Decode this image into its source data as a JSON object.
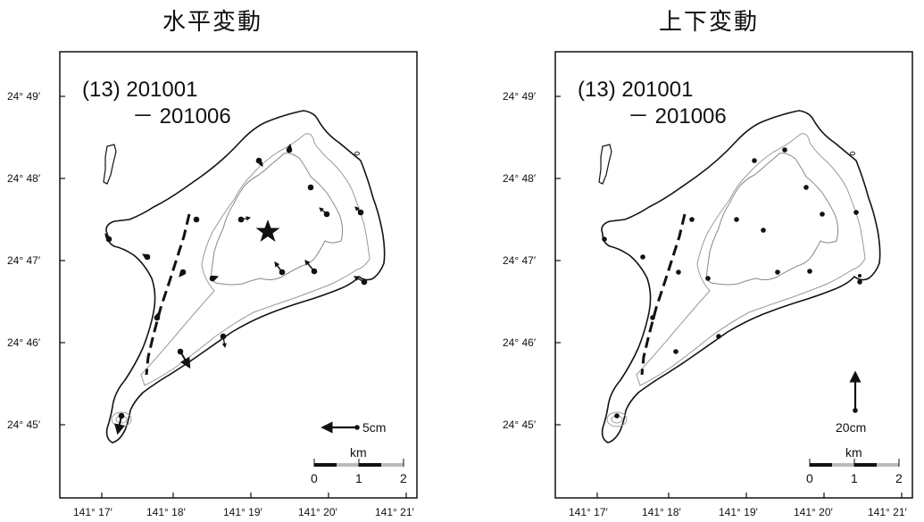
{
  "panels": [
    {
      "id": "horizontal",
      "title": "水平変動",
      "period_line1": "(13) 201001",
      "period_line2": "－ 201006",
      "scale_arrow_label": "5cm",
      "scale_bar_unit": "km",
      "scale_bar_ticks": [
        "0",
        "1",
        "2"
      ],
      "lat_labels": [
        "24°  49′",
        "24°  48′",
        "24°  47′",
        "24°  46′",
        "24°  45′"
      ],
      "lon_labels": [
        "141°  17′",
        "141°  18′",
        "141°  19′",
        "141°  20′",
        "141°  21′"
      ],
      "has_star": true
    },
    {
      "id": "vertical",
      "title": "上下変動",
      "period_line1": "(13) 201001",
      "period_line2": "－ 201006",
      "scale_arrow_label": "20cm",
      "scale_bar_unit": "km",
      "scale_bar_ticks": [
        "0",
        "1",
        "2"
      ],
      "lat_labels": [
        "24°  49′",
        "24°  48′",
        "24°  47′",
        "24°  46′",
        "24°  45′"
      ],
      "lon_labels": [
        "141°  17′",
        "141°  18′",
        "141°  19′",
        "141°  20′",
        "141°  21′"
      ],
      "has_star": false
    }
  ]
}
